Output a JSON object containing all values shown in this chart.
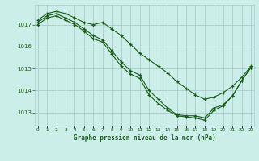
{
  "background_color": "#cceee8",
  "grid_color": "#aacccc",
  "line_color": "#1a5c1a",
  "marker_color": "#1a5c1a",
  "title": "Graphe pression niveau de la mer (hPa)",
  "ylim": [
    1012.4,
    1017.9
  ],
  "xlim": [
    -0.3,
    23.3
  ],
  "yticks": [
    1013,
    1014,
    1015,
    1016,
    1017
  ],
  "xticks": [
    0,
    1,
    2,
    3,
    4,
    5,
    6,
    7,
    8,
    9,
    10,
    11,
    12,
    13,
    14,
    15,
    16,
    17,
    18,
    19,
    20,
    21,
    22,
    23
  ],
  "series": [
    {
      "x": [
        0,
        1,
        2,
        3,
        4,
        5,
        6,
        7,
        8,
        9,
        10,
        11,
        12,
        13,
        14,
        15,
        16,
        17,
        18,
        19,
        20,
        21,
        22,
        23
      ],
      "y": [
        1017.2,
        1017.5,
        1017.6,
        1017.5,
        1017.3,
        1017.1,
        1017.0,
        1017.1,
        1016.8,
        1016.5,
        1016.1,
        1015.7,
        1015.4,
        1015.1,
        1014.8,
        1014.4,
        1014.1,
        1013.8,
        1013.6,
        1013.7,
        1013.9,
        1014.2,
        1014.6,
        1015.1
      ]
    },
    {
      "x": [
        0,
        1,
        2,
        3,
        4,
        5,
        6,
        7,
        8,
        9,
        10,
        11,
        12,
        13,
        14,
        15,
        16,
        17,
        18,
        19,
        20,
        21,
        22,
        23
      ],
      "y": [
        1017.1,
        1017.4,
        1017.5,
        1017.3,
        1017.1,
        1016.8,
        1016.5,
        1016.3,
        1015.8,
        1015.3,
        1014.9,
        1014.7,
        1014.0,
        1013.6,
        1013.2,
        1012.9,
        1012.85,
        1012.85,
        1012.75,
        1013.2,
        1013.35,
        1013.75,
        1014.45,
        1015.05
      ]
    },
    {
      "x": [
        0,
        1,
        2,
        3,
        4,
        5,
        6,
        7,
        8,
        9,
        10,
        11,
        12,
        13,
        14,
        15,
        16,
        17,
        18,
        19,
        20,
        21,
        22,
        23
      ],
      "y": [
        1017.0,
        1017.3,
        1017.4,
        1017.2,
        1017.0,
        1016.7,
        1016.35,
        1016.2,
        1015.65,
        1015.1,
        1014.75,
        1014.55,
        1013.8,
        1013.4,
        1013.1,
        1012.85,
        1012.8,
        1012.75,
        1012.65,
        1013.1,
        1013.3,
        1013.75,
        1014.45,
        1015.05
      ]
    }
  ]
}
